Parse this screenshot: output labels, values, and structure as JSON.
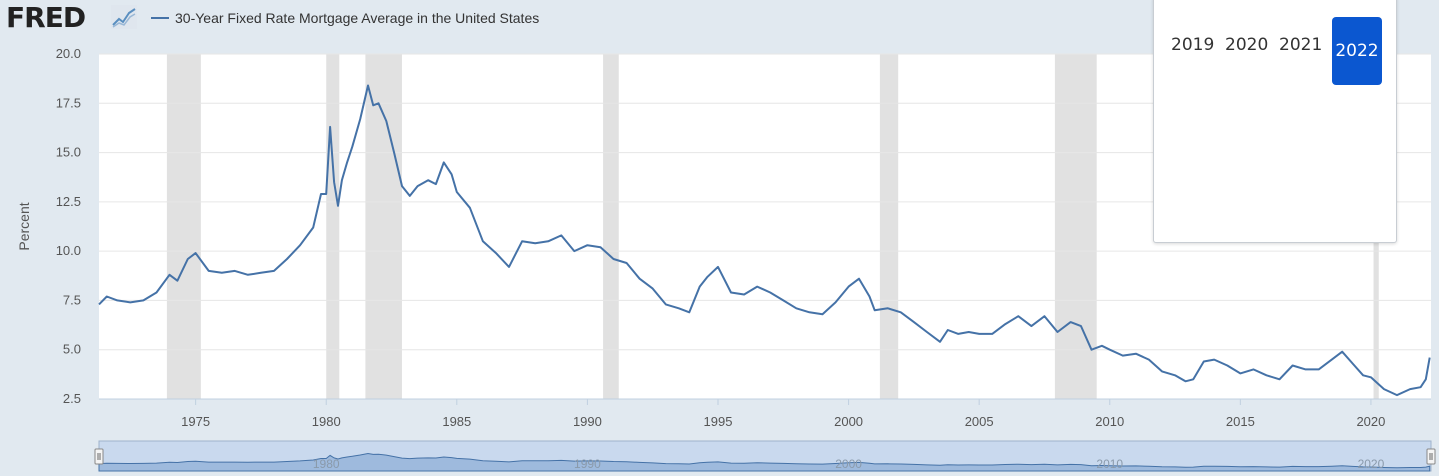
{
  "header": {
    "logo_text": "FRED",
    "legend_label": "30-Year Fixed Rate Mortgage Average in the United States",
    "series_color": "#4572a7"
  },
  "year_picker": {
    "years": [
      "2019",
      "2020",
      "2021",
      "2022"
    ],
    "selected": "2022"
  },
  "chart_data": {
    "type": "line",
    "ylabel": "Percent",
    "ylim": [
      2.5,
      20.0
    ],
    "xlim": [
      1971.3,
      2022.3
    ],
    "yticks": [
      "2.5",
      "5.0",
      "7.5",
      "10.0",
      "12.5",
      "15.0",
      "17.5",
      "20.0"
    ],
    "xticks": [
      "1975",
      "1980",
      "1985",
      "1990",
      "1995",
      "2000",
      "2005",
      "2010",
      "2015",
      "2020"
    ],
    "recessions": [
      [
        1973.9,
        1975.2
      ],
      [
        1980.0,
        1980.5
      ],
      [
        1981.5,
        1982.9
      ],
      [
        1990.6,
        1991.2
      ],
      [
        2001.2,
        2001.9
      ],
      [
        2007.9,
        2009.5
      ],
      [
        2020.1,
        2020.3
      ]
    ],
    "series": [
      {
        "x": [
          1971.3,
          1971.6,
          1972.0,
          1972.5,
          1973.0,
          1973.5,
          1974.0,
          1974.3,
          1974.7,
          1975.0,
          1975.5,
          1976.0,
          1976.5,
          1977.0,
          1977.5,
          1978.0,
          1978.5,
          1979.0,
          1979.5,
          1979.8,
          1980.0,
          1980.15,
          1980.3,
          1980.45,
          1980.6,
          1980.8,
          1981.0,
          1981.3,
          1981.6,
          1981.8,
          1982.0,
          1982.3,
          1982.6,
          1982.9,
          1983.2,
          1983.5,
          1983.9,
          1984.2,
          1984.5,
          1984.8,
          1985.0,
          1985.5,
          1986.0,
          1986.5,
          1987.0,
          1987.5,
          1988.0,
          1988.5,
          1989.0,
          1989.5,
          1990.0,
          1990.5,
          1991.0,
          1991.5,
          1992.0,
          1992.5,
          1993.0,
          1993.5,
          1993.9,
          1994.3,
          1994.6,
          1995.0,
          1995.5,
          1996.0,
          1996.5,
          1997.0,
          1997.5,
          1998.0,
          1998.5,
          1999.0,
          1999.5,
          2000.0,
          2000.4,
          2000.8,
          2001.0,
          2001.5,
          2002.0,
          2002.5,
          2003.0,
          2003.5,
          2003.8,
          2004.2,
          2004.6,
          2005.0,
          2005.5,
          2006.0,
          2006.5,
          2007.0,
          2007.5,
          2008.0,
          2008.5,
          2008.9,
          2009.3,
          2009.7,
          2010.0,
          2010.5,
          2011.0,
          2011.5,
          2012.0,
          2012.5,
          2012.9,
          2013.2,
          2013.6,
          2014.0,
          2014.5,
          2015.0,
          2015.5,
          2016.0,
          2016.5,
          2017.0,
          2017.5,
          2018.0,
          2018.5,
          2018.9,
          2019.3,
          2019.7,
          2020.0,
          2020.5,
          2021.0,
          2021.5,
          2021.9,
          2022.1,
          2022.25
        ],
        "y": [
          7.3,
          7.7,
          7.5,
          7.4,
          7.5,
          7.9,
          8.8,
          8.5,
          9.6,
          9.9,
          9.0,
          8.9,
          9.0,
          8.8,
          8.9,
          9.0,
          9.6,
          10.3,
          11.2,
          12.9,
          12.9,
          16.3,
          13.5,
          12.3,
          13.6,
          14.5,
          15.3,
          16.7,
          18.4,
          17.4,
          17.5,
          16.6,
          15.0,
          13.3,
          12.8,
          13.3,
          13.6,
          13.4,
          14.5,
          13.9,
          13.0,
          12.2,
          10.5,
          9.9,
          9.2,
          10.5,
          10.4,
          10.5,
          10.8,
          10.0,
          10.3,
          10.2,
          9.6,
          9.4,
          8.6,
          8.1,
          7.3,
          7.1,
          6.9,
          8.2,
          8.7,
          9.2,
          7.9,
          7.8,
          8.2,
          7.9,
          7.5,
          7.1,
          6.9,
          6.8,
          7.4,
          8.2,
          8.6,
          7.7,
          7.0,
          7.1,
          6.9,
          6.4,
          5.9,
          5.4,
          6.0,
          5.8,
          5.9,
          5.8,
          5.8,
          6.3,
          6.7,
          6.2,
          6.7,
          5.9,
          6.4,
          6.2,
          5.0,
          5.2,
          5.0,
          4.7,
          4.8,
          4.5,
          3.9,
          3.7,
          3.4,
          3.5,
          4.4,
          4.5,
          4.2,
          3.8,
          4.0,
          3.7,
          3.5,
          4.2,
          4.0,
          4.0,
          4.5,
          4.9,
          4.3,
          3.7,
          3.6,
          3.0,
          2.7,
          3.0,
          3.1,
          3.5,
          4.6
        ]
      }
    ]
  }
}
